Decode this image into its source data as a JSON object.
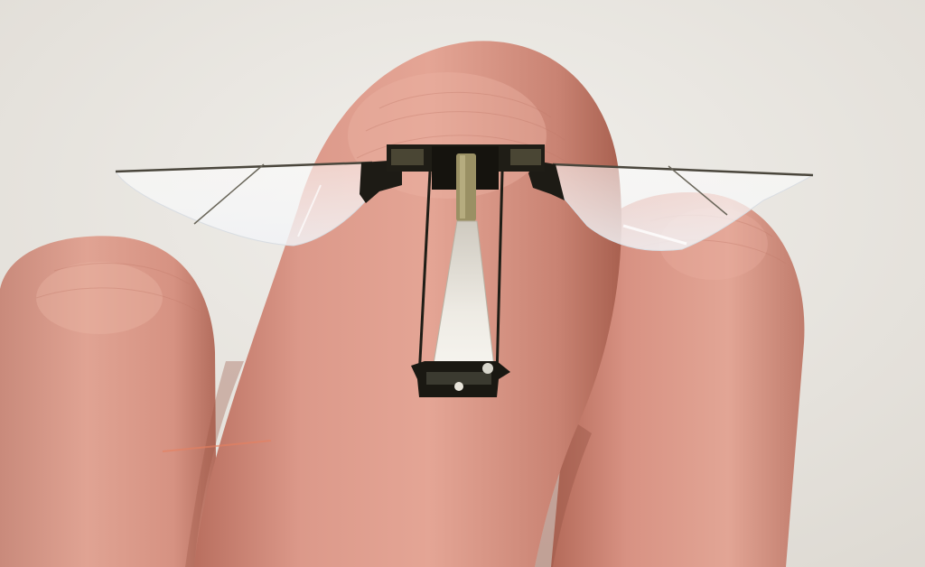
{
  "scene": {
    "subject": "robobee-on-fingertips"
  },
  "colors": {
    "background": "#e9e7e2",
    "skin": "#d99584",
    "skin_shadow": "#b86e5d",
    "skin_highlight": "#edb3a2",
    "frame": "#1a1812",
    "wing": "#f4f6f8",
    "actuator": "#9a9064"
  }
}
